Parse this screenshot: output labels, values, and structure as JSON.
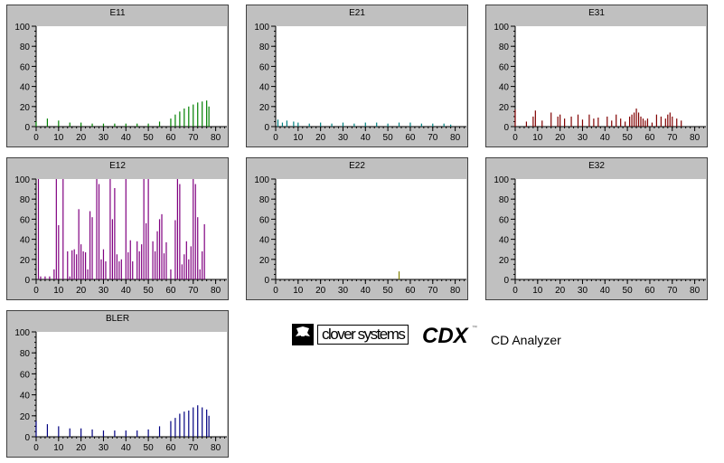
{
  "chart_data": [
    {
      "id": "e11",
      "type": "bar",
      "title": "E11",
      "color": "#008000",
      "xlim": [
        0,
        85
      ],
      "ylim": [
        0,
        100
      ],
      "xticks": [
        "0",
        "10",
        "20",
        "30",
        "40",
        "50",
        "60",
        "70",
        "80"
      ],
      "yticks": [
        "0",
        "20",
        "40",
        "60",
        "80",
        "100"
      ],
      "x": [
        0,
        5,
        10,
        15,
        20,
        25,
        30,
        35,
        40,
        45,
        50,
        55,
        60,
        62,
        64,
        66,
        68,
        70,
        72,
        74,
        76,
        77
      ],
      "y": [
        5,
        8,
        6,
        4,
        4,
        3,
        3,
        3,
        3,
        3,
        3,
        5,
        8,
        12,
        15,
        18,
        20,
        22,
        24,
        25,
        26,
        20
      ]
    },
    {
      "id": "e21",
      "type": "bar",
      "title": "E21",
      "color": "#008080",
      "xlim": [
        0,
        85
      ],
      "ylim": [
        0,
        100
      ],
      "xticks": [
        "0",
        "10",
        "20",
        "30",
        "40",
        "50",
        "60",
        "70",
        "80"
      ],
      "yticks": [
        "0",
        "20",
        "40",
        "60",
        "80",
        "100"
      ],
      "x": [
        1,
        3,
        5,
        8,
        10,
        15,
        20,
        25,
        30,
        35,
        40,
        45,
        50,
        55,
        60,
        65,
        70,
        75,
        78
      ],
      "y": [
        7,
        4,
        6,
        5,
        4,
        3,
        4,
        3,
        4,
        3,
        4,
        4,
        3,
        4,
        4,
        3,
        3,
        3,
        2
      ]
    },
    {
      "id": "e31",
      "type": "bar",
      "title": "E31",
      "color": "#800000",
      "xlim": [
        0,
        85
      ],
      "ylim": [
        0,
        100
      ],
      "xticks": [
        "0",
        "10",
        "20",
        "30",
        "40",
        "50",
        "60",
        "70",
        "80"
      ],
      "yticks": [
        "0",
        "20",
        "40",
        "60",
        "80",
        "100"
      ],
      "x": [
        0,
        5,
        8,
        9,
        12,
        16,
        19,
        20,
        22,
        25,
        28,
        30,
        33,
        35,
        37,
        41,
        43,
        45,
        47,
        49,
        51,
        52,
        53,
        54,
        55,
        56,
        57,
        58,
        59,
        61,
        63,
        65,
        67,
        68,
        69,
        70,
        72,
        74
      ],
      "y": [
        17,
        5,
        10,
        16,
        6,
        14,
        10,
        12,
        8,
        10,
        12,
        7,
        12,
        8,
        9,
        10,
        6,
        12,
        8,
        5,
        10,
        12,
        14,
        18,
        14,
        10,
        8,
        6,
        8,
        4,
        12,
        10,
        8,
        12,
        14,
        10,
        8,
        6
      ]
    },
    {
      "id": "e12",
      "type": "bar",
      "title": "E12",
      "color": "#800080",
      "xlim": [
        0,
        85
      ],
      "ylim": [
        0,
        100
      ],
      "xticks": [
        "0",
        "10",
        "20",
        "30",
        "40",
        "50",
        "60",
        "70",
        "80"
      ],
      "yticks": [
        "0",
        "20",
        "40",
        "60",
        "80",
        "100"
      ],
      "x": [
        1,
        2,
        4,
        6,
        8,
        9,
        10,
        12,
        14,
        15,
        16,
        17,
        18,
        19,
        20,
        21,
        22,
        23,
        24,
        25,
        27,
        28,
        29,
        30,
        31,
        33,
        34,
        35,
        36,
        37,
        38,
        40,
        41,
        42,
        43,
        45,
        46,
        47,
        48,
        49,
        50,
        52,
        53,
        54,
        55,
        56,
        57,
        58,
        60,
        62,
        63,
        64,
        65,
        66,
        67,
        68,
        69,
        70,
        71,
        72,
        73,
        74,
        75
      ],
      "y": [
        100,
        3,
        3,
        3,
        10,
        100,
        54,
        100,
        28,
        3,
        29,
        30,
        25,
        70,
        35,
        28,
        27,
        10,
        68,
        62,
        100,
        95,
        20,
        30,
        18,
        100,
        60,
        91,
        25,
        18,
        20,
        100,
        27,
        39,
        18,
        38,
        28,
        35,
        100,
        56,
        100,
        38,
        28,
        48,
        60,
        65,
        26,
        37,
        10,
        59,
        100,
        95,
        15,
        25,
        38,
        20,
        33,
        100,
        95,
        62,
        10,
        28,
        55
      ]
    },
    {
      "id": "e22",
      "type": "bar",
      "title": "E22",
      "color": "#808000",
      "xlim": [
        0,
        85
      ],
      "ylim": [
        0,
        100
      ],
      "xticks": [
        "0",
        "10",
        "20",
        "30",
        "40",
        "50",
        "60",
        "70",
        "80"
      ],
      "yticks": [
        "0",
        "20",
        "40",
        "60",
        "80",
        "100"
      ],
      "x": [
        55
      ],
      "y": [
        8
      ]
    },
    {
      "id": "e32",
      "type": "bar",
      "title": "E32",
      "color": "#000000",
      "xlim": [
        0,
        85
      ],
      "ylim": [
        0,
        100
      ],
      "xticks": [
        "0",
        "10",
        "20",
        "30",
        "40",
        "50",
        "60",
        "70",
        "80"
      ],
      "yticks": [
        "0",
        "20",
        "40",
        "60",
        "80",
        "100"
      ],
      "x": [],
      "y": []
    },
    {
      "id": "bler",
      "type": "bar",
      "title": "BLER",
      "color": "#000080",
      "xlim": [
        0,
        85
      ],
      "ylim": [
        0,
        100
      ],
      "xticks": [
        "0",
        "10",
        "20",
        "30",
        "40",
        "50",
        "60",
        "70",
        "80"
      ],
      "yticks": [
        "0",
        "20",
        "40",
        "60",
        "80",
        "100"
      ],
      "x": [
        0,
        5,
        10,
        15,
        20,
        25,
        30,
        35,
        40,
        45,
        50,
        55,
        60,
        62,
        64,
        66,
        68,
        70,
        72,
        74,
        76,
        77
      ],
      "y": [
        15,
        12,
        10,
        8,
        8,
        7,
        6,
        6,
        6,
        6,
        7,
        10,
        15,
        18,
        22,
        24,
        25,
        28,
        30,
        28,
        26,
        20
      ]
    }
  ],
  "branding": {
    "logo_text": "clover systems",
    "product": "CDX",
    "trademark": "™",
    "tagline": "CD Analyzer"
  }
}
